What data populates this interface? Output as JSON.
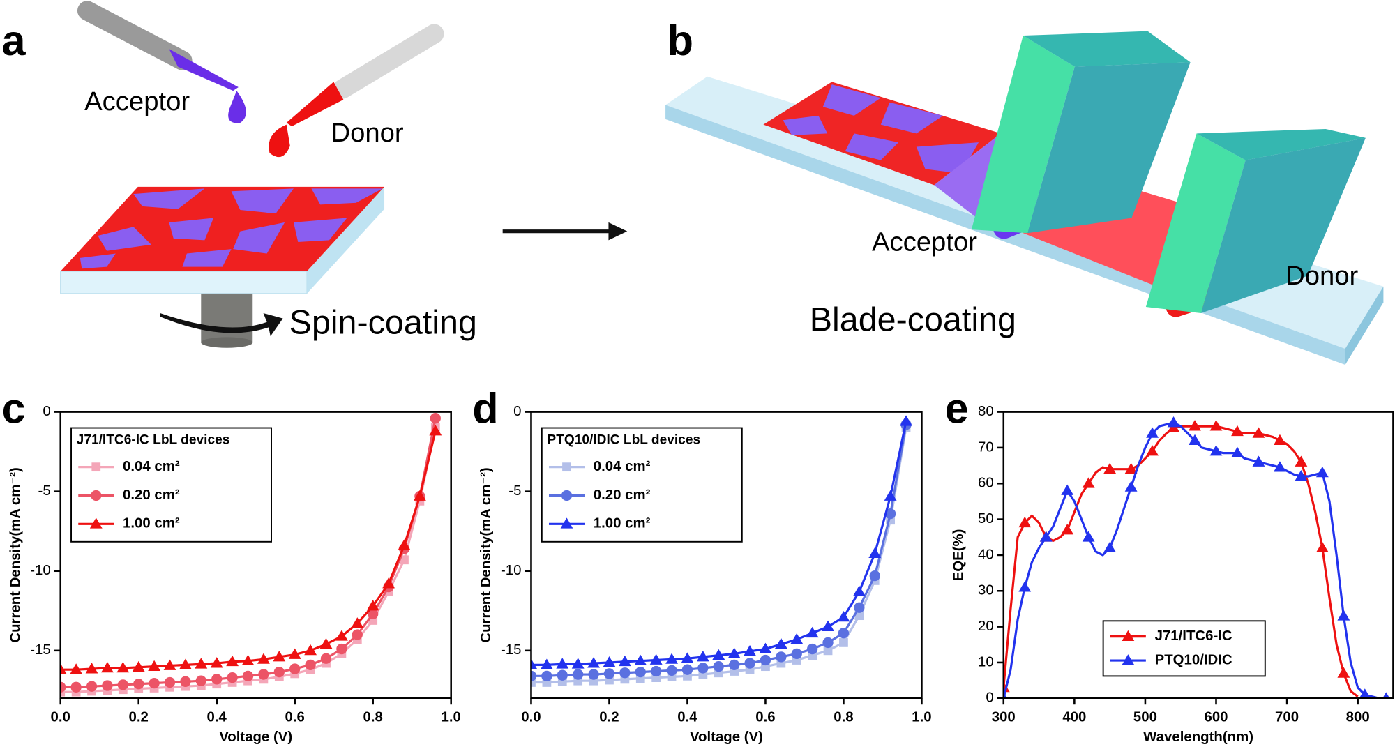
{
  "schematic_a": {
    "label": "a",
    "acceptor": "Acceptor",
    "donor": "Donor",
    "caption": "Spin-coating"
  },
  "schematic_b": {
    "label": "b",
    "acceptor": "Acceptor",
    "donor": "Donor",
    "caption": "Blade-coating"
  },
  "chart_data": [
    {
      "type": "line",
      "label": "c",
      "x_label": "Voltage (V)",
      "y_label": "Current Density(mA cm⁻²)",
      "legend_title": "J71/ITC6-IC LbL devices",
      "legend_loc": "upper left",
      "xlim": [
        0,
        1
      ],
      "xticks": [
        {
          "value": 0,
          "label": "0.0"
        },
        0.2,
        0.4,
        0.6,
        0.8,
        {
          "value": 1,
          "label": "1.0"
        }
      ],
      "ylim": [
        -18,
        0
      ],
      "yticks": [
        0,
        -5,
        -10,
        -15
      ],
      "x": [
        0,
        0.04,
        0.08,
        0.12,
        0.16,
        0.2,
        0.24,
        0.28,
        0.32,
        0.36,
        0.4,
        0.44,
        0.48,
        0.52,
        0.56,
        0.6,
        0.64,
        0.68,
        0.72,
        0.76,
        0.8,
        0.84,
        0.88,
        0.92,
        0.96
      ],
      "series": [
        {
          "name": "0.04 cm²",
          "color": "#f4a6b8",
          "marker": "square",
          "values": [
            -17.6,
            -17.6,
            -17.55,
            -17.5,
            -17.45,
            -17.4,
            -17.35,
            -17.3,
            -17.25,
            -17.2,
            -17.1,
            -17.0,
            -16.9,
            -16.8,
            -16.65,
            -16.45,
            -16.2,
            -15.8,
            -15.2,
            -14.3,
            -13.1,
            -11.3,
            -9.3,
            -5.6,
            -1.0
          ]
        },
        {
          "name": "0.20 cm²",
          "color": "#ec5466",
          "marker": "circle",
          "values": [
            -17.3,
            -17.3,
            -17.25,
            -17.2,
            -17.15,
            -17.1,
            -17.05,
            -17.0,
            -16.95,
            -16.9,
            -16.8,
            -16.7,
            -16.6,
            -16.5,
            -16.35,
            -16.15,
            -15.9,
            -15.5,
            -14.9,
            -14.0,
            -12.7,
            -11.0,
            -8.6,
            -5.3,
            -0.4
          ]
        },
        {
          "name": "1.00 cm²",
          "color": "#ee1111",
          "marker": "triangle",
          "values": [
            -16.2,
            -16.2,
            -16.15,
            -16.1,
            -16.1,
            -16.05,
            -16.0,
            -15.95,
            -15.9,
            -15.85,
            -15.8,
            -15.7,
            -15.65,
            -15.55,
            -15.4,
            -15.25,
            -15.0,
            -14.6,
            -14.1,
            -13.3,
            -12.2,
            -10.8,
            -8.4,
            -5.3,
            -1.2
          ]
        }
      ]
    },
    {
      "type": "line",
      "label": "d",
      "x_label": "Voltage (V)",
      "y_label": "Current Density(mA cm⁻²)",
      "legend_title": "PTQ10/IDIC LbL devices",
      "legend_loc": "upper left",
      "xlim": [
        0,
        1
      ],
      "xticks": [
        {
          "value": 0,
          "label": "0.0"
        },
        0.2,
        0.4,
        0.6,
        0.8,
        {
          "value": 1,
          "label": "1.0"
        }
      ],
      "ylim": [
        -18,
        0
      ],
      "yticks": [
        0,
        -5,
        -10,
        -15
      ],
      "x": [
        0,
        0.04,
        0.08,
        0.12,
        0.16,
        0.2,
        0.24,
        0.28,
        0.32,
        0.36,
        0.4,
        0.44,
        0.48,
        0.52,
        0.56,
        0.6,
        0.64,
        0.68,
        0.72,
        0.76,
        0.8,
        0.84,
        0.88,
        0.92,
        0.96
      ],
      "series": [
        {
          "name": "0.04 cm²",
          "color": "#b3bfe9",
          "marker": "square",
          "values": [
            -17.0,
            -17.0,
            -16.95,
            -16.9,
            -16.9,
            -16.85,
            -16.8,
            -16.75,
            -16.7,
            -16.65,
            -16.6,
            -16.5,
            -16.4,
            -16.3,
            -16.2,
            -16.0,
            -15.8,
            -15.6,
            -15.3,
            -15.0,
            -14.5,
            -12.8,
            -10.6,
            -6.8,
            -1.0
          ]
        },
        {
          "name": "0.20 cm²",
          "color": "#5a70e0",
          "marker": "circle",
          "values": [
            -16.6,
            -16.6,
            -16.55,
            -16.5,
            -16.5,
            -16.45,
            -16.4,
            -16.35,
            -16.3,
            -16.25,
            -16.2,
            -16.1,
            -16.0,
            -15.9,
            -15.8,
            -15.6,
            -15.4,
            -15.2,
            -14.9,
            -14.5,
            -13.9,
            -12.3,
            -10.3,
            -6.4,
            -0.8
          ]
        },
        {
          "name": "1.00 cm²",
          "color": "#2233ee",
          "marker": "triangle",
          "values": [
            -15.9,
            -15.9,
            -15.85,
            -15.85,
            -15.8,
            -15.75,
            -15.7,
            -15.65,
            -15.6,
            -15.55,
            -15.5,
            -15.4,
            -15.3,
            -15.2,
            -15.05,
            -14.9,
            -14.6,
            -14.3,
            -13.9,
            -13.5,
            -12.9,
            -11.3,
            -8.9,
            -5.3,
            -0.6
          ]
        }
      ]
    },
    {
      "type": "line",
      "label": "e",
      "x_label": "Wavelength(nm)",
      "y_label": "EQE(%)",
      "legend_loc": "lower center",
      "xlim": [
        300,
        850
      ],
      "xticks": [
        300,
        400,
        500,
        600,
        700,
        800
      ],
      "ylim": [
        0,
        80
      ],
      "yticks": [
        0,
        10,
        20,
        30,
        40,
        50,
        60,
        70,
        80
      ],
      "x": [
        300,
        310,
        320,
        330,
        340,
        350,
        360,
        370,
        380,
        390,
        400,
        410,
        420,
        430,
        440,
        450,
        460,
        470,
        480,
        490,
        500,
        510,
        520,
        530,
        540,
        550,
        560,
        570,
        580,
        590,
        600,
        610,
        620,
        630,
        640,
        650,
        660,
        670,
        680,
        690,
        700,
        710,
        720,
        730,
        740,
        750,
        760,
        770,
        780,
        790,
        800,
        810,
        820,
        830,
        840,
        850
      ],
      "series": [
        {
          "name": "J71/ITC6-IC",
          "color": "#ee1111",
          "marker": "triangle",
          "values": [
            3,
            25,
            45,
            49,
            51,
            49,
            45,
            44,
            45,
            47,
            52,
            57,
            60,
            63,
            64.5,
            64,
            64,
            64,
            64,
            65,
            67,
            69,
            72,
            74,
            75.5,
            76,
            76,
            76,
            76,
            76,
            76,
            75.5,
            75,
            74.5,
            74,
            74,
            74,
            73.5,
            73,
            72,
            71,
            69,
            66,
            60,
            52,
            42,
            28,
            15,
            7,
            2,
            0.5,
            null,
            null,
            null,
            null,
            null
          ]
        },
        {
          "name": "PTQ10/IDIC",
          "color": "#2233ee",
          "marker": "triangle",
          "values": [
            0,
            8,
            22,
            31,
            38,
            42,
            45,
            48,
            53,
            58,
            55,
            50,
            45,
            41,
            40,
            42,
            47,
            53,
            59,
            65,
            70,
            74,
            76,
            76.5,
            77,
            76,
            74,
            72,
            70,
            69.5,
            69,
            68.5,
            68.5,
            68.5,
            67,
            66.5,
            66,
            65.5,
            65,
            64.5,
            63.5,
            62.5,
            62,
            62,
            62.5,
            63,
            55,
            40,
            23,
            10,
            3,
            1,
            0.5,
            0,
            0,
            0
          ]
        }
      ]
    }
  ]
}
